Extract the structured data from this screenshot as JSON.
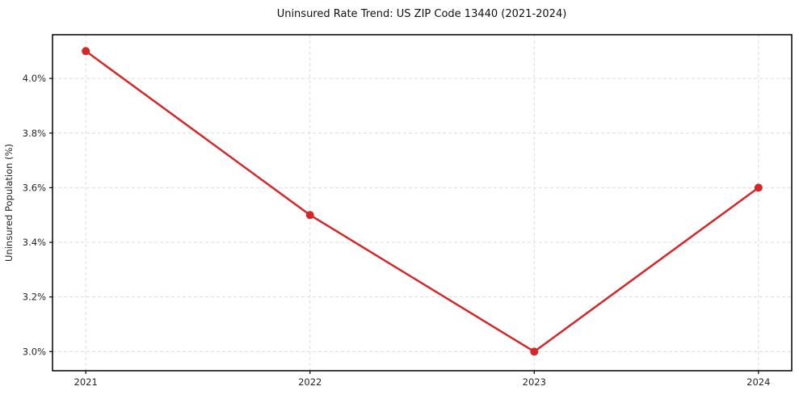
{
  "chart_data": {
    "type": "line",
    "title": "Uninsured Rate Trend: US ZIP Code 13440 (2021-2024)",
    "xlabel": "",
    "ylabel": "Uninsured Population (%)",
    "categories": [
      "2021",
      "2022",
      "2023",
      "2024"
    ],
    "series": [
      {
        "name": "Uninsured rate",
        "values": [
          4.1,
          3.5,
          3.0,
          3.6
        ],
        "color": "#d62728"
      }
    ],
    "ylim": [
      2.93,
      4.16
    ],
    "yticks": [
      3.0,
      3.2,
      3.4,
      3.6,
      3.8,
      4.0
    ],
    "ytick_labels": [
      "3.0%",
      "3.2%",
      "3.4%",
      "3.6%",
      "3.8%",
      "4.0%"
    ],
    "grid": true,
    "grid_style": "dashed",
    "grid_color": "#dcdcdc",
    "line_width": 2.5,
    "marker": "circle",
    "marker_radius": 5,
    "legend": "none",
    "background": "#ffffff",
    "frame_color": "#000000",
    "x_margin": 0.045
  }
}
